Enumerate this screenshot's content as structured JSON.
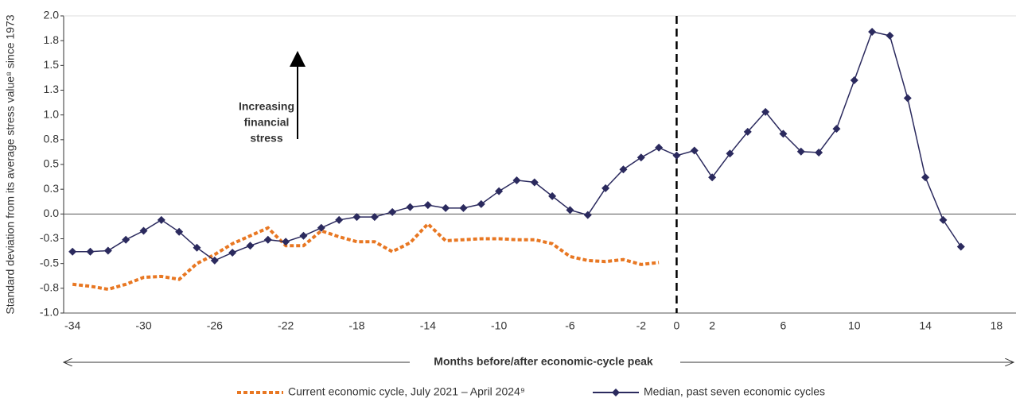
{
  "chart_data": {
    "type": "line",
    "y_label": "Standard deviation from its average stress value⁸ since 1973",
    "x_label": "Months before/after economic-cycle peak",
    "annotation": [
      "Increasing",
      "financial",
      "stress"
    ],
    "vline_x": 0,
    "xlim": [
      -34.5,
      19.1
    ],
    "xticks": [
      -34,
      -30,
      -26,
      -22,
      -18,
      -14,
      -10,
      -6,
      -2,
      0,
      2,
      6,
      10,
      14,
      18
    ],
    "ylim": [
      -1.0,
      2.0
    ],
    "yticks": [
      {
        "value": 2.0,
        "label": "2.0"
      },
      {
        "value": 1.75,
        "label": "1.8"
      },
      {
        "value": 1.5,
        "label": "1.5"
      },
      {
        "value": 1.25,
        "label": "1.3"
      },
      {
        "value": 1.0,
        "label": "1.0"
      },
      {
        "value": 0.75,
        "label": "0.8"
      },
      {
        "value": 0.5,
        "label": "0.5"
      },
      {
        "value": 0.25,
        "label": "0.3"
      },
      {
        "value": 0,
        "label": "0.0"
      },
      {
        "value": -0.25,
        "label": "-0.3"
      },
      {
        "value": -0.5,
        "label": "-0.5"
      },
      {
        "value": -0.75,
        "label": "-0.8"
      },
      {
        "value": -1.0,
        "label": "-1.0"
      }
    ],
    "series": [
      {
        "name": "Current economic cycle, July 2021 – April 2024⁹",
        "color": "#e87722",
        "style": "dashed",
        "x": [
          -34,
          -33,
          -32,
          -31,
          -30,
          -29,
          -28,
          -27,
          -26,
          -25,
          -24,
          -23,
          -22,
          -21,
          -20,
          -19,
          -18,
          -17,
          -16,
          -15,
          -14,
          -13,
          -12,
          -11,
          -10,
          -9,
          -8,
          -7,
          -6,
          -5,
          -4,
          -3,
          -2,
          -1
        ],
        "values": [
          -0.71,
          -0.73,
          -0.76,
          -0.71,
          -0.64,
          -0.63,
          -0.66,
          -0.5,
          -0.41,
          -0.3,
          -0.22,
          -0.14,
          -0.32,
          -0.32,
          -0.17,
          -0.23,
          -0.28,
          -0.28,
          -0.38,
          -0.29,
          -0.1,
          -0.27,
          -0.26,
          -0.25,
          -0.25,
          -0.26,
          -0.26,
          -0.3,
          -0.43,
          -0.47,
          -0.48,
          -0.46,
          -0.51,
          -0.49
        ]
      },
      {
        "name": "Median, past seven economic cycles",
        "color": "#2b2a5e",
        "style": "solid-diamond",
        "x": [
          -34,
          -33,
          -32,
          -31,
          -30,
          -29,
          -28,
          -27,
          -26,
          -25,
          -24,
          -23,
          -22,
          -21,
          -20,
          -19,
          -18,
          -17,
          -16,
          -15,
          -14,
          -13,
          -12,
          -11,
          -10,
          -9,
          -8,
          -7,
          -6,
          -5,
          -4,
          -3,
          -2,
          -1,
          0,
          1,
          2,
          3,
          4,
          5,
          6,
          7,
          8,
          9,
          10,
          11,
          12,
          13,
          14,
          15,
          16
        ],
        "values": [
          -0.38,
          -0.38,
          -0.37,
          -0.26,
          -0.17,
          -0.06,
          -0.18,
          -0.34,
          -0.47,
          -0.39,
          -0.32,
          -0.26,
          -0.28,
          -0.22,
          -0.14,
          -0.06,
          -0.03,
          -0.03,
          0.02,
          0.07,
          0.09,
          0.06,
          0.06,
          0.1,
          0.23,
          0.34,
          0.32,
          0.18,
          0.04,
          -0.01,
          0.26,
          0.45,
          0.57,
          0.67,
          0.59,
          0.64,
          0.37,
          0.61,
          0.83,
          1.03,
          0.81,
          0.63,
          0.62,
          0.86,
          1.35,
          1.84,
          1.8,
          1.17,
          0.37,
          -0.06,
          -0.33
        ]
      }
    ]
  }
}
